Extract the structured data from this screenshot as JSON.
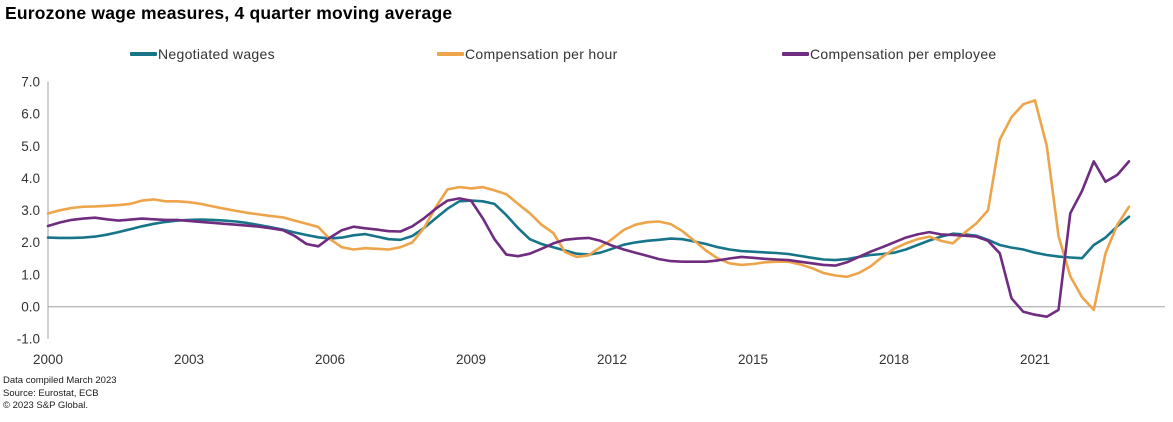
{
  "title": "Eurozone wage measures, 4 quarter moving average",
  "footnotes": [
    "Data compiled March 2023",
    "Source: Eurostat, ECB",
    "© 2023 S&P Global."
  ],
  "colors": {
    "negotiated_wages": "#17758a",
    "compensation_per_hour": "#eea44a",
    "compensation_per_employee": "#6f2c80",
    "axis_line": "#a0a0a0",
    "tick_text": "#333333"
  },
  "chart_data": {
    "type": "line",
    "title": "Eurozone wage measures, 4 quarter moving average",
    "xlabel": "",
    "ylabel": "",
    "x_start_year": 2000,
    "x_step_years": 0.25,
    "x_end_year": 2023,
    "x_tick_years": [
      2000,
      2003,
      2006,
      2009,
      2012,
      2015,
      2018,
      2021
    ],
    "y_tick_labels": [
      "7.0",
      "6.0",
      "5.0",
      "4.0",
      "3.0",
      "2.0",
      "1.0",
      "0.0",
      "-1.0"
    ],
    "y_ticks": [
      7.0,
      6.0,
      5.0,
      4.0,
      3.0,
      2.0,
      1.0,
      0.0,
      -1.0
    ],
    "ylim": [
      -1.0,
      7.0
    ],
    "grid": "zero-line-only",
    "legend_position": "top",
    "series": [
      {
        "name": "Negotiated wages",
        "color": "#17758a",
        "values": [
          2.15,
          2.14,
          2.14,
          2.15,
          2.18,
          2.24,
          2.32,
          2.41,
          2.5,
          2.58,
          2.64,
          2.68,
          2.7,
          2.71,
          2.7,
          2.68,
          2.65,
          2.6,
          2.54,
          2.47,
          2.4,
          2.31,
          2.23,
          2.16,
          2.12,
          2.15,
          2.22,
          2.26,
          2.18,
          2.1,
          2.08,
          2.2,
          2.45,
          2.75,
          3.05,
          3.28,
          3.3,
          3.28,
          3.2,
          2.85,
          2.45,
          2.1,
          1.95,
          1.85,
          1.75,
          1.65,
          1.62,
          1.68,
          1.8,
          1.93,
          2.0,
          2.05,
          2.08,
          2.12,
          2.1,
          2.03,
          1.95,
          1.85,
          1.78,
          1.73,
          1.71,
          1.69,
          1.67,
          1.64,
          1.58,
          1.52,
          1.47,
          1.45,
          1.48,
          1.55,
          1.61,
          1.64,
          1.68,
          1.78,
          1.92,
          2.06,
          2.18,
          2.27,
          2.25,
          2.21,
          2.08,
          1.92,
          1.84,
          1.78,
          1.68,
          1.61,
          1.56,
          1.53,
          1.51,
          1.92,
          2.15,
          2.5,
          2.8
        ]
      },
      {
        "name": "Compensation per hour",
        "color": "#eea44a",
        "values": [
          2.9,
          3.0,
          3.07,
          3.11,
          3.12,
          3.14,
          3.16,
          3.2,
          3.3,
          3.34,
          3.28,
          3.28,
          3.25,
          3.2,
          3.12,
          3.05,
          2.98,
          2.92,
          2.87,
          2.82,
          2.78,
          2.68,
          2.58,
          2.48,
          2.1,
          1.85,
          1.78,
          1.82,
          1.8,
          1.78,
          1.85,
          2.0,
          2.45,
          3.1,
          3.65,
          3.72,
          3.68,
          3.72,
          3.62,
          3.5,
          3.2,
          2.91,
          2.55,
          2.29,
          1.7,
          1.55,
          1.6,
          1.85,
          2.1,
          2.39,
          2.55,
          2.63,
          2.65,
          2.57,
          2.35,
          2.05,
          1.75,
          1.5,
          1.35,
          1.3,
          1.33,
          1.38,
          1.4,
          1.4,
          1.32,
          1.2,
          1.05,
          0.97,
          0.93,
          1.05,
          1.25,
          1.55,
          1.8,
          1.97,
          2.1,
          2.18,
          2.05,
          1.97,
          2.3,
          2.59,
          3.0,
          5.2,
          5.9,
          6.3,
          6.42,
          5.0,
          2.2,
          0.95,
          0.3,
          -0.1,
          1.66,
          2.55,
          3.11
        ]
      },
      {
        "name": "Compensation per employee",
        "color": "#6f2c80",
        "values": [
          2.51,
          2.62,
          2.7,
          2.74,
          2.77,
          2.72,
          2.68,
          2.71,
          2.74,
          2.72,
          2.7,
          2.7,
          2.67,
          2.64,
          2.61,
          2.58,
          2.55,
          2.52,
          2.49,
          2.44,
          2.38,
          2.2,
          1.95,
          1.88,
          2.15,
          2.38,
          2.49,
          2.44,
          2.4,
          2.35,
          2.34,
          2.5,
          2.75,
          3.05,
          3.3,
          3.37,
          3.3,
          2.75,
          2.1,
          1.62,
          1.57,
          1.65,
          1.8,
          1.97,
          2.08,
          2.12,
          2.14,
          2.05,
          1.9,
          1.78,
          1.68,
          1.58,
          1.48,
          1.42,
          1.4,
          1.4,
          1.4,
          1.44,
          1.5,
          1.55,
          1.52,
          1.49,
          1.47,
          1.45,
          1.4,
          1.35,
          1.3,
          1.28,
          1.38,
          1.55,
          1.71,
          1.85,
          2.0,
          2.15,
          2.25,
          2.32,
          2.25,
          2.23,
          2.21,
          2.18,
          2.05,
          1.66,
          0.26,
          -0.16,
          -0.25,
          -0.31,
          -0.1,
          2.91,
          3.6,
          4.52,
          3.89,
          4.1,
          4.52
        ]
      }
    ]
  }
}
